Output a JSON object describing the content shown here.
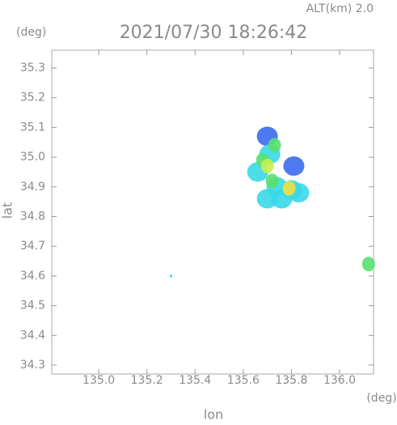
{
  "chart_data": {
    "type": "scatter",
    "title": "2021/07/30 18:26:42",
    "subtitle": "ALT(km) 2.0",
    "y_unit": "(deg)",
    "x_unit": "(deg)",
    "xlabel": "lon",
    "ylabel": "lat",
    "xlim": [
      134.805,
      136.141
    ],
    "ylim": [
      34.27,
      35.36
    ],
    "xticks": [
      {
        "value": 135,
        "label": "135.0"
      },
      135.2,
      135.4,
      135.6,
      135.8,
      {
        "value": 136,
        "label": "136.0"
      }
    ],
    "yticks": [
      34.3,
      34.4,
      34.5,
      34.6,
      34.7,
      34.8,
      34.9,
      {
        "value": 35,
        "label": "35.0"
      },
      35.1,
      35.2,
      35.3
    ],
    "x": [
      135.7,
      135.71,
      135.66,
      135.74,
      135.8,
      135.83,
      135.76,
      135.7,
      135.81,
      135.68,
      135.7,
      135.72,
      135.79,
      135.73,
      136.12,
      135.3
    ],
    "values": [
      35.07,
      35.01,
      34.95,
      34.9,
      34.89,
      34.88,
      34.86,
      34.86,
      34.97,
      34.99,
      34.97,
      34.92,
      34.895,
      35.04,
      34.64,
      34.6
    ],
    "colors": [
      "#3a6cf0",
      "#38d8e8",
      "#38d8e8",
      "#38d8e8",
      "#38d8e8",
      "#38d8e8",
      "#38d8e8",
      "#38d8e8",
      "#3a6cf0",
      "#58e070",
      "#c8f050",
      "#58e070",
      "#f0e040",
      "#58e070",
      "#58e070",
      "#38d8e8"
    ]
  }
}
